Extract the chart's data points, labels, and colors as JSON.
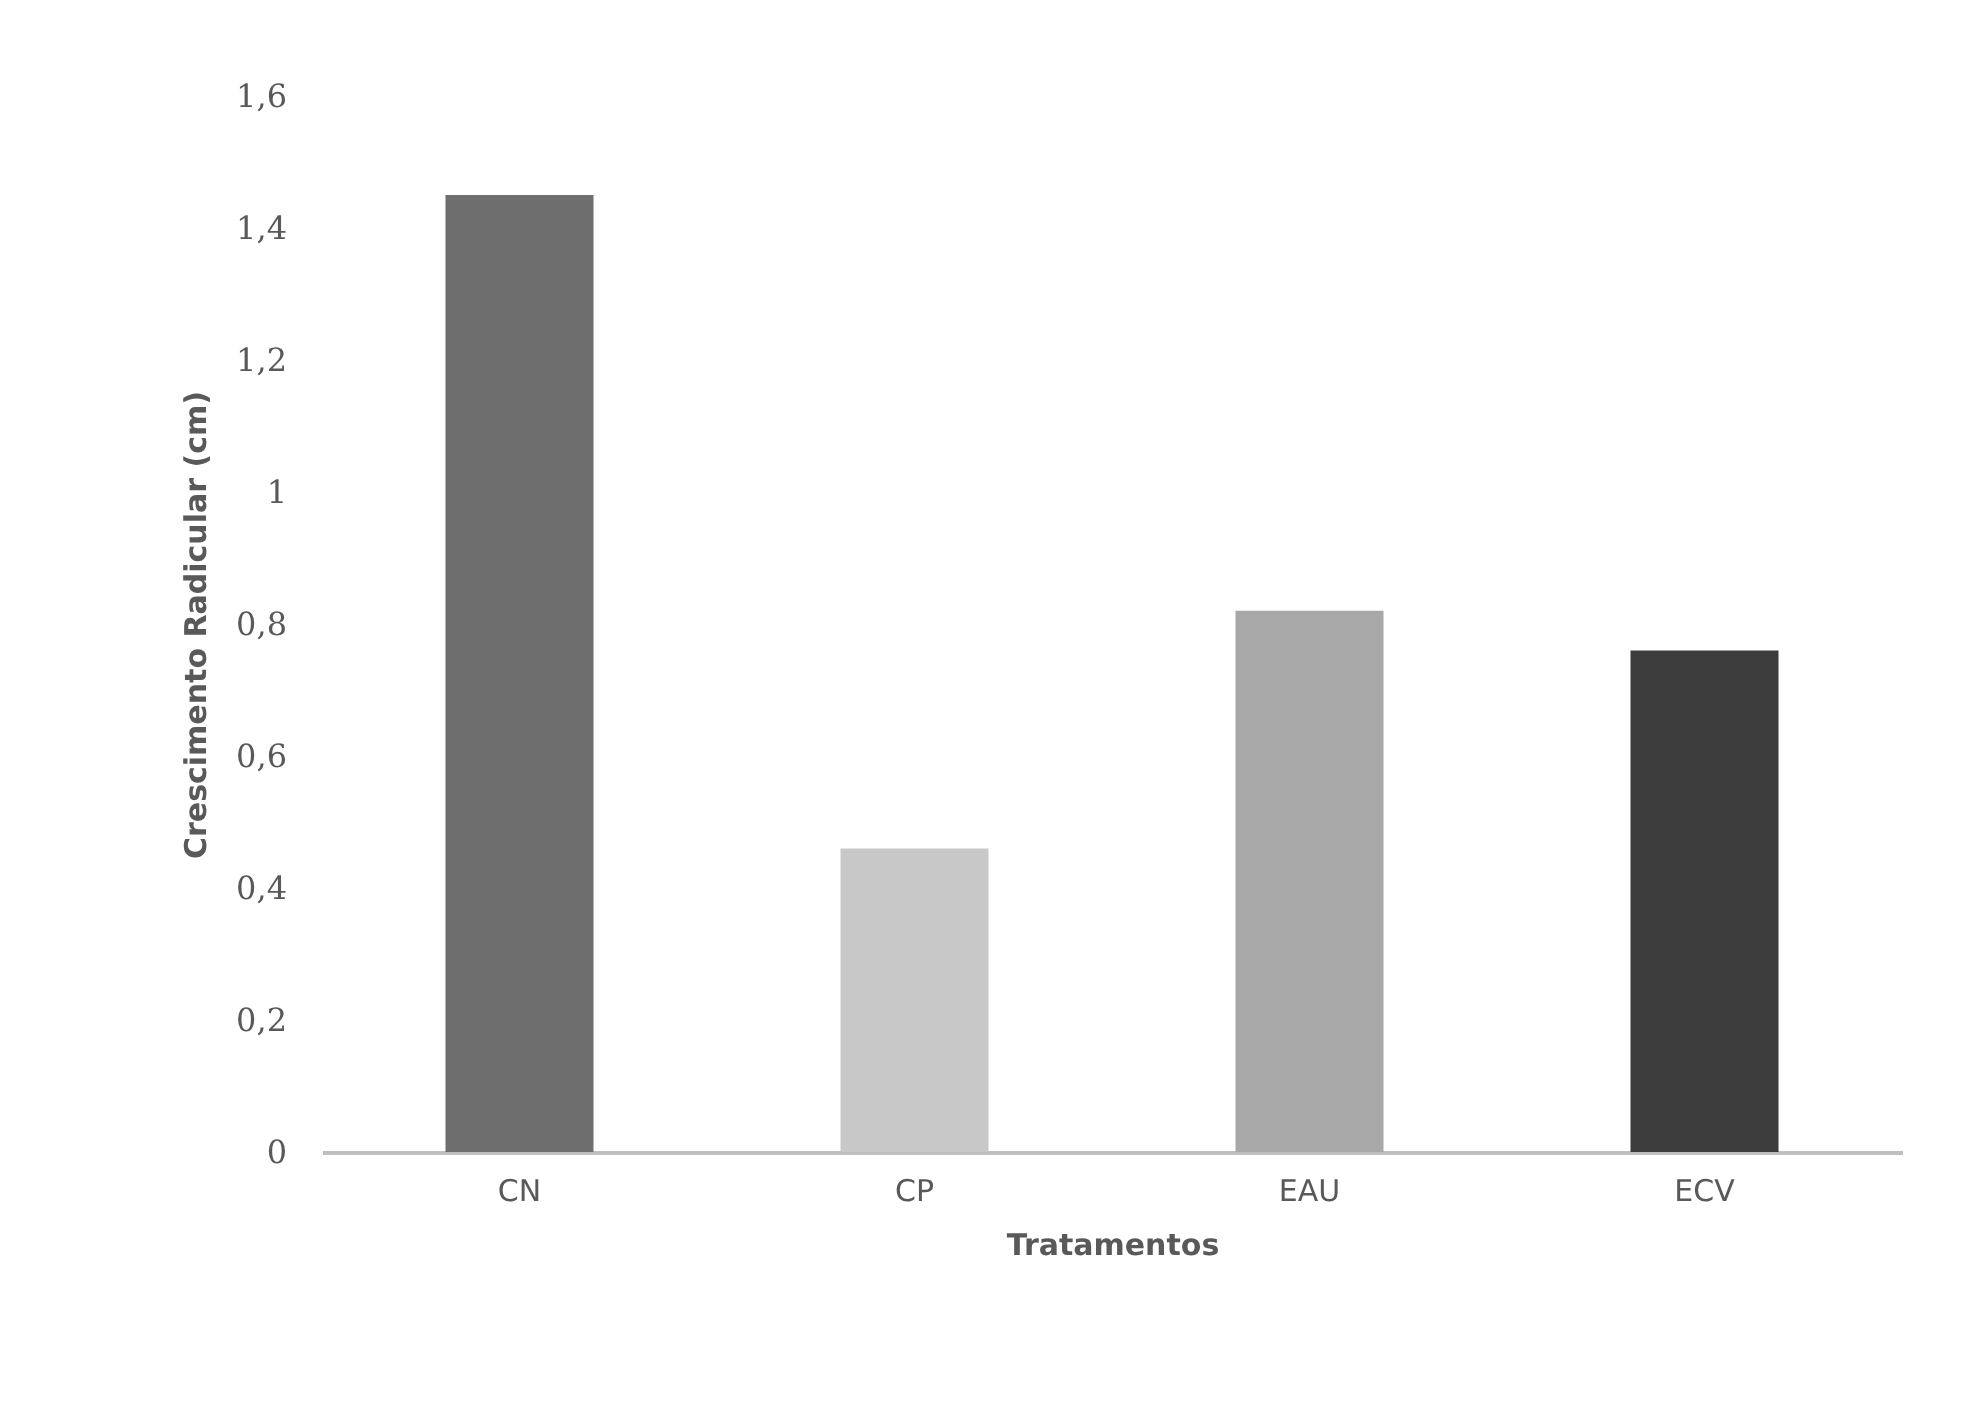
{
  "chart_data": {
    "type": "bar",
    "xlabel": "Tratamentos",
    "ylabel": "Crescimento Radicular (cm)",
    "categories": [
      "CN",
      "CP",
      "EAU",
      "ECV"
    ],
    "values": [
      1.45,
      0.46,
      0.82,
      0.76
    ],
    "colors": [
      "#6e6e6e",
      "#c8c8c8",
      "#a8a8a8",
      "#3c3c3c"
    ],
    "ylim": [
      0,
      1.6
    ],
    "yticks": [
      0,
      {
        "value": 0.2,
        "label": "0,2"
      },
      {
        "value": 0.4,
        "label": "0,4"
      },
      {
        "value": 0.6,
        "label": "0,6"
      },
      {
        "value": 0.8,
        "label": "0,8"
      },
      1,
      {
        "value": 1.2,
        "label": "1,2"
      },
      {
        "value": 1.4,
        "label": "1,4"
      },
      {
        "value": 1.6,
        "label": "1,6"
      }
    ],
    "grid": false
  }
}
